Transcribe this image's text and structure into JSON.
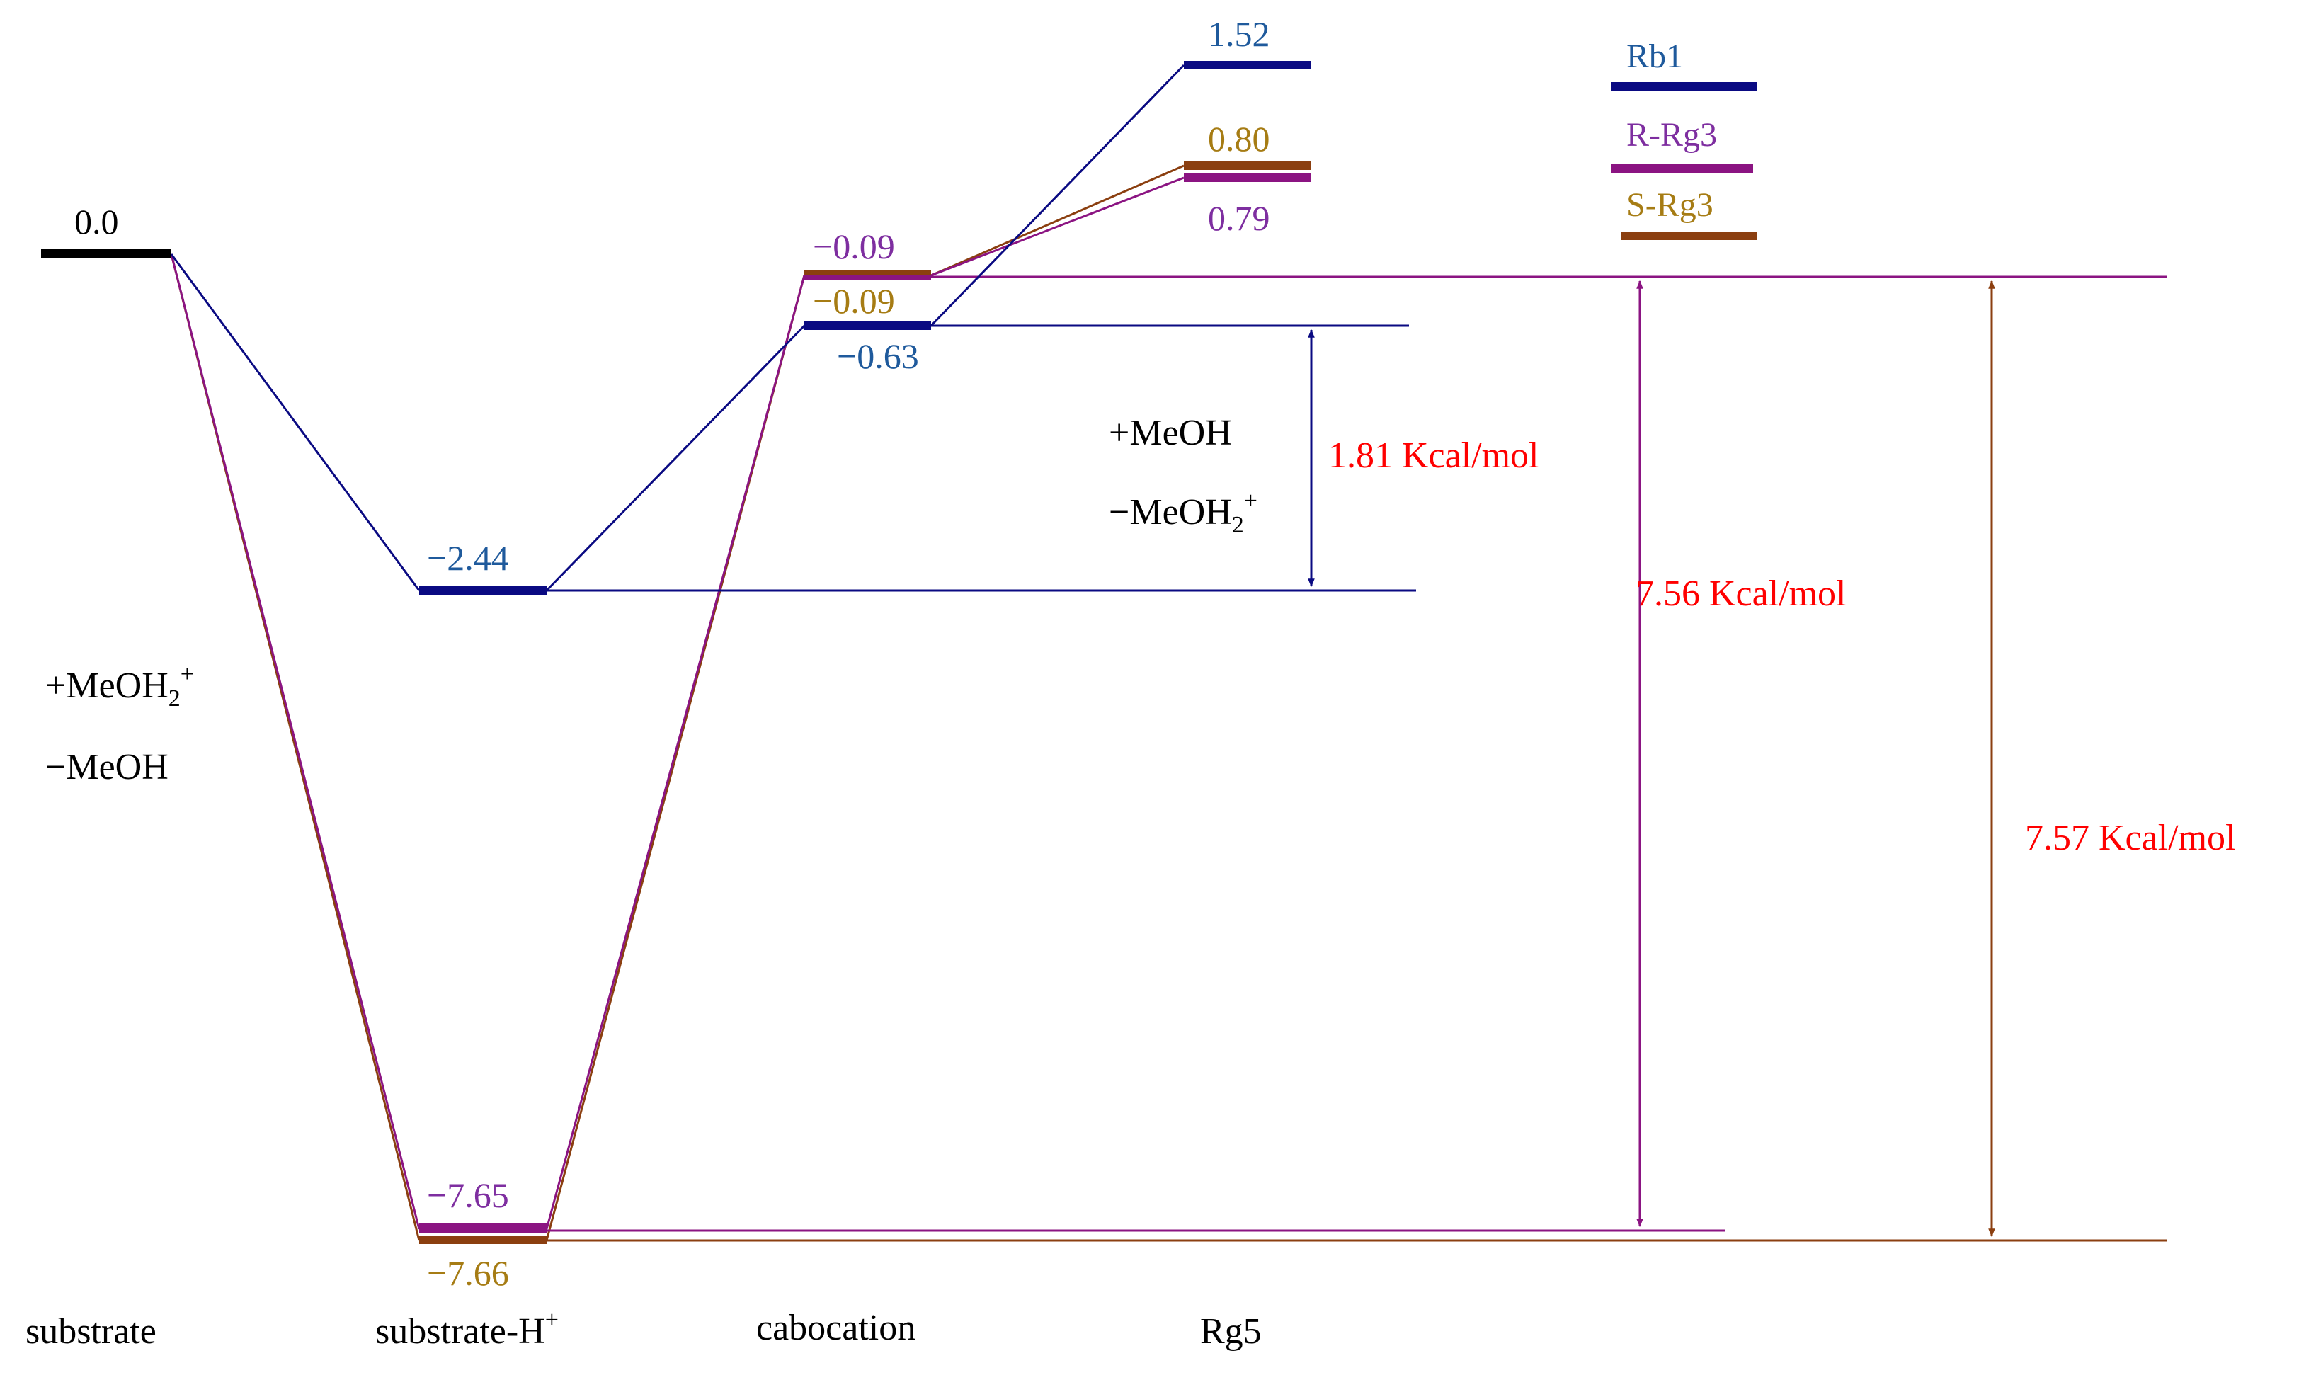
{
  "colors": {
    "rb1": "#0a0a82",
    "rrg3": "#8b1482",
    "srg3": "#8b3f10",
    "rb1_text": "#1f5a9c",
    "rrg3_text": "#7e2ea0",
    "srg3_text": "#a67c14",
    "kcal_text": "#ff0000",
    "black": "#000000"
  },
  "stages": {
    "substrate": "substrate",
    "substrate_h": "substrate-H",
    "substrate_h_sup": "+",
    "cabocation": "cabocation",
    "rg5": "Rg5"
  },
  "energies": {
    "substrate": "0.0",
    "rb1_subH": "−2.44",
    "rrg3_subH": "−7.65",
    "srg3_subH": "−7.66",
    "rrg3_cab": "−0.09",
    "srg3_cab": "−0.09",
    "rb1_cab": "−0.63",
    "rb1_rg5": "1.52",
    "srg3_rg5": "0.80",
    "rrg3_rg5": "0.79"
  },
  "annotations": {
    "left_add": "+MeOH",
    "left_add_sub": "2",
    "left_add_sup": "+",
    "left_remove": "−MeOH",
    "mid_add": "+MeOH",
    "mid_remove": "−MeOH",
    "mid_remove_sub": "2",
    "mid_remove_sup": "+"
  },
  "barriers": {
    "rb1": "1.81 Kcal/mol",
    "rrg3": "7.56 Kcal/mol",
    "srg3": "7.57 Kcal/mol"
  },
  "legend": {
    "rb1": "Rb1",
    "rrg3": "R-Rg3",
    "srg3": "S-Rg3"
  }
}
